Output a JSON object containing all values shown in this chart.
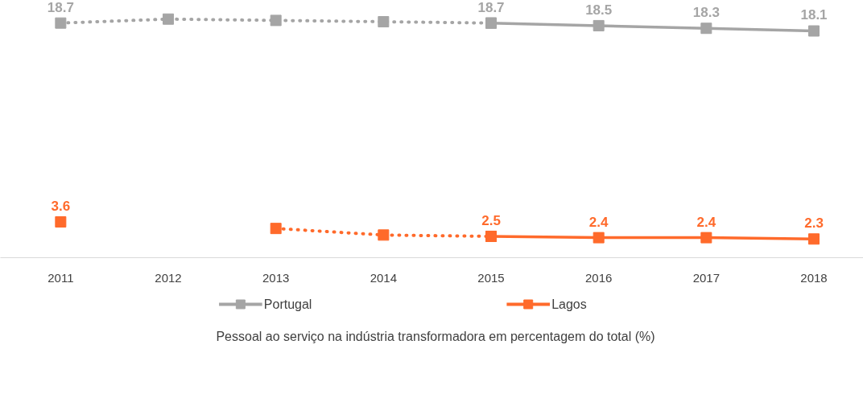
{
  "chart_data": {
    "type": "line",
    "categories": [
      "2011",
      "2012",
      "2013",
      "2014",
      "2015",
      "2016",
      "2017",
      "2018"
    ],
    "series": [
      {
        "color": "#a5a5a5",
        "line_style": "dotted",
        "values": [
          18.7,
          19.0,
          18.9,
          18.8,
          18.7,
          null,
          null,
          null
        ],
        "value_labels": [
          "18.7",
          null,
          null,
          null,
          null,
          null,
          null,
          null
        ]
      },
      {
        "name": "Portugal",
        "color": "#a5a5a5",
        "line_style": "solid",
        "values": [
          null,
          null,
          null,
          null,
          18.7,
          18.5,
          18.3,
          18.1
        ],
        "value_labels": [
          null,
          null,
          null,
          null,
          "18.7",
          "18.5",
          "18.3",
          "18.1"
        ]
      },
      {
        "color": "#ff6a2b",
        "line_style": "dotted",
        "values": [
          3.6,
          null,
          3.1,
          2.6,
          2.5,
          null,
          null,
          null
        ],
        "value_labels": [
          "3.6",
          null,
          null,
          null,
          null,
          null,
          null,
          null
        ]
      },
      {
        "name": "Lagos",
        "color": "#ff6a2b",
        "line_style": "solid",
        "values": [
          null,
          null,
          null,
          null,
          2.5,
          2.4,
          2.4,
          2.3
        ],
        "value_labels": [
          null,
          null,
          null,
          null,
          "2.5",
          "2.4",
          "2.4",
          "2.3"
        ]
      }
    ],
    "marker": "square",
    "grid": false,
    "legend": "bottom",
    "annotations": [
      "Pessoal ao serviço na indústria transformadora em percentagem do total (%)"
    ]
  }
}
